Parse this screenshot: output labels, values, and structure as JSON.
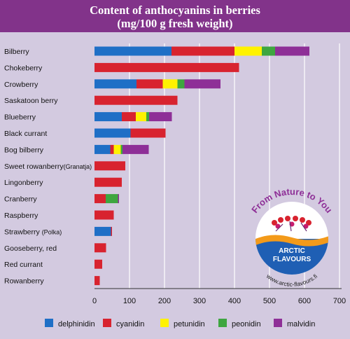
{
  "header": {
    "title_line1": "Content of anthocyanins in berries",
    "title_line2": "(mg/100 g fresh weight)"
  },
  "colors": {
    "header_bg": "#82338a",
    "panel_bg": "#d3cae0",
    "delphinidin": "#1f6fc6",
    "cyanidin": "#d8232f",
    "petunidin": "#fff200",
    "peonidin": "#3ea640",
    "malvidin": "#8e2f97"
  },
  "logo": {
    "arc_text": "From Nature to You",
    "line1": "ARCTIC",
    "line2": "FLAVOURS",
    "url": "www.arctic-flavours.fi"
  },
  "chart_data": {
    "type": "bar",
    "orientation": "horizontal",
    "stacked": true,
    "title": "Content of anthocyanins in berries",
    "subtitle": "(mg/100 g fresh weight)",
    "xlim": [
      0,
      700
    ],
    "xticks": [
      0,
      100,
      200,
      300,
      400,
      500,
      600,
      700
    ],
    "legend_position": "bottom",
    "categories": [
      {
        "name": "Bilberry",
        "suffix": ""
      },
      {
        "name": "Chokeberry",
        "suffix": ""
      },
      {
        "name": "Crowberry",
        "suffix": ""
      },
      {
        "name": "Saskatoon berry",
        "suffix": ""
      },
      {
        "name": "Blueberry",
        "suffix": ""
      },
      {
        "name": "Black currant",
        "suffix": ""
      },
      {
        "name": "Bog bilberry",
        "suffix": ""
      },
      {
        "name": "Sweet rowanberry",
        "suffix": "(Granatja)"
      },
      {
        "name": "Lingonberry",
        "suffix": ""
      },
      {
        "name": "Cranberry",
        "suffix": ""
      },
      {
        "name": "Raspberry",
        "suffix": ""
      },
      {
        "name": "Strawberry ",
        "suffix": "(Polka)"
      },
      {
        "name": "Gooseberry, red",
        "suffix": ""
      },
      {
        "name": "Red currant",
        "suffix": ""
      },
      {
        "name": "Rowanberry",
        "suffix": ""
      }
    ],
    "series": [
      {
        "name": "delphinidin",
        "values": [
          220,
          0,
          120,
          0,
          78,
          103,
          45,
          0,
          0,
          0,
          0,
          47,
          0,
          0,
          0
        ]
      },
      {
        "name": "cyanidin",
        "values": [
          180,
          413,
          75,
          237,
          40,
          100,
          10,
          88,
          78,
          32,
          55,
          3,
          33,
          22,
          15
        ]
      },
      {
        "name": "petunidin",
        "values": [
          78,
          0,
          42,
          0,
          30,
          0,
          20,
          0,
          0,
          0,
          0,
          0,
          0,
          0,
          0
        ]
      },
      {
        "name": "peonidin",
        "values": [
          38,
          0,
          20,
          0,
          8,
          0,
          5,
          0,
          0,
          35,
          0,
          0,
          0,
          0,
          0
        ]
      },
      {
        "name": "malvidin",
        "values": [
          98,
          0,
          103,
          0,
          65,
          0,
          75,
          0,
          0,
          3,
          0,
          0,
          0,
          0,
          0
        ]
      }
    ]
  }
}
